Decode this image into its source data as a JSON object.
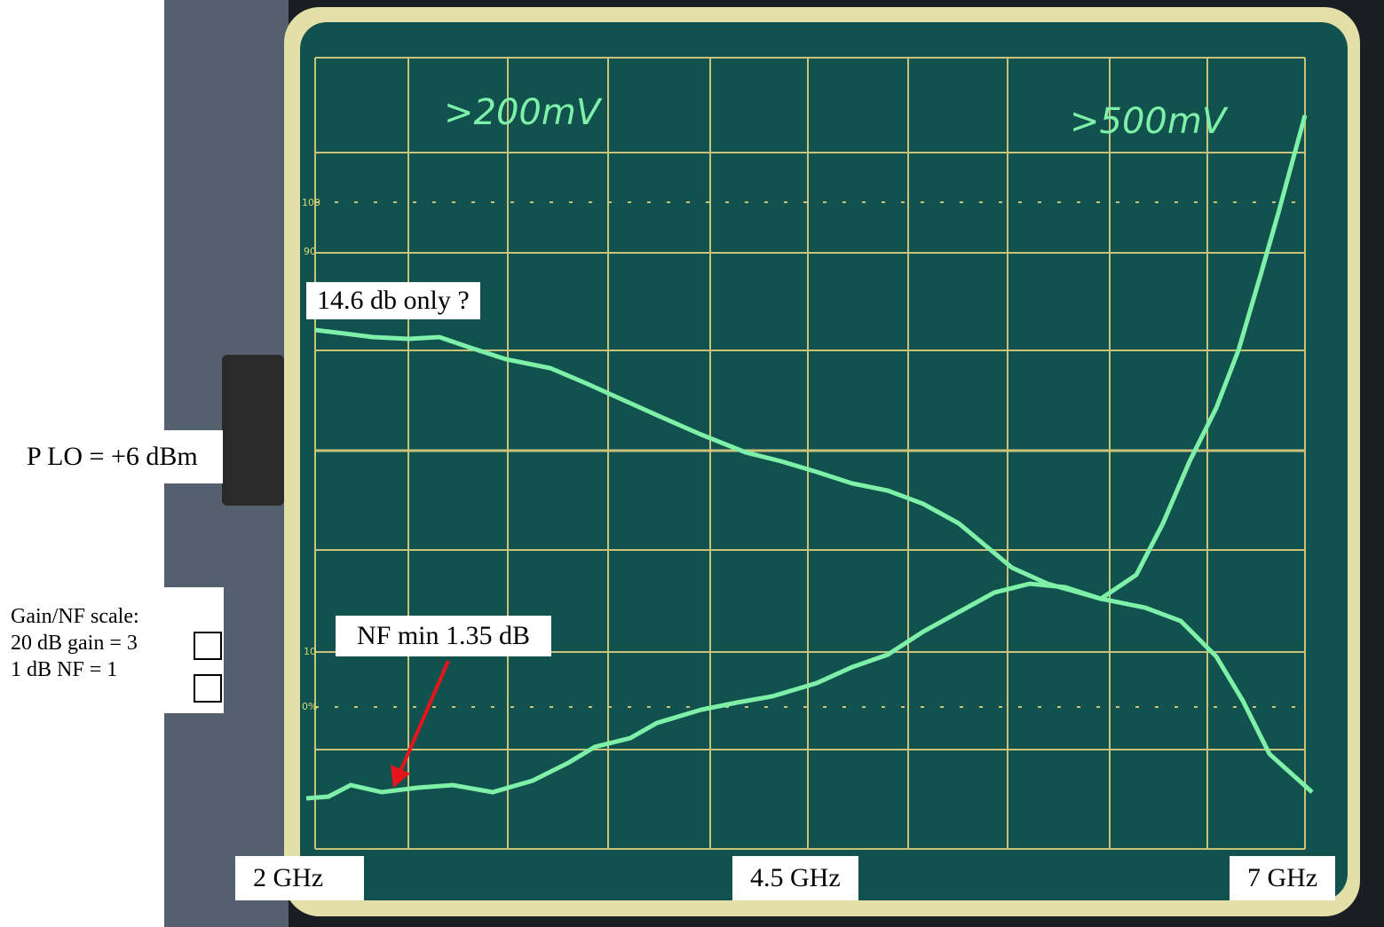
{
  "screen": {
    "range_left": ">200mV",
    "range_right": ">500mV",
    "graticule_labels": [
      "100",
      "90",
      "10",
      "0%"
    ]
  },
  "annotations": {
    "gain_note": "14.6 db only ?",
    "lo_power": "P LO = +6 dBm",
    "scale_title": "Gain/NF scale:",
    "scale_gain": "20 dB gain = 3",
    "scale_nf": "1 dB NF = 1",
    "nf_note": "NF min 1.35 dB"
  },
  "x_axis": {
    "start": "2 GHz",
    "middle": "4.5 GHz",
    "end": "7 GHz"
  }
}
